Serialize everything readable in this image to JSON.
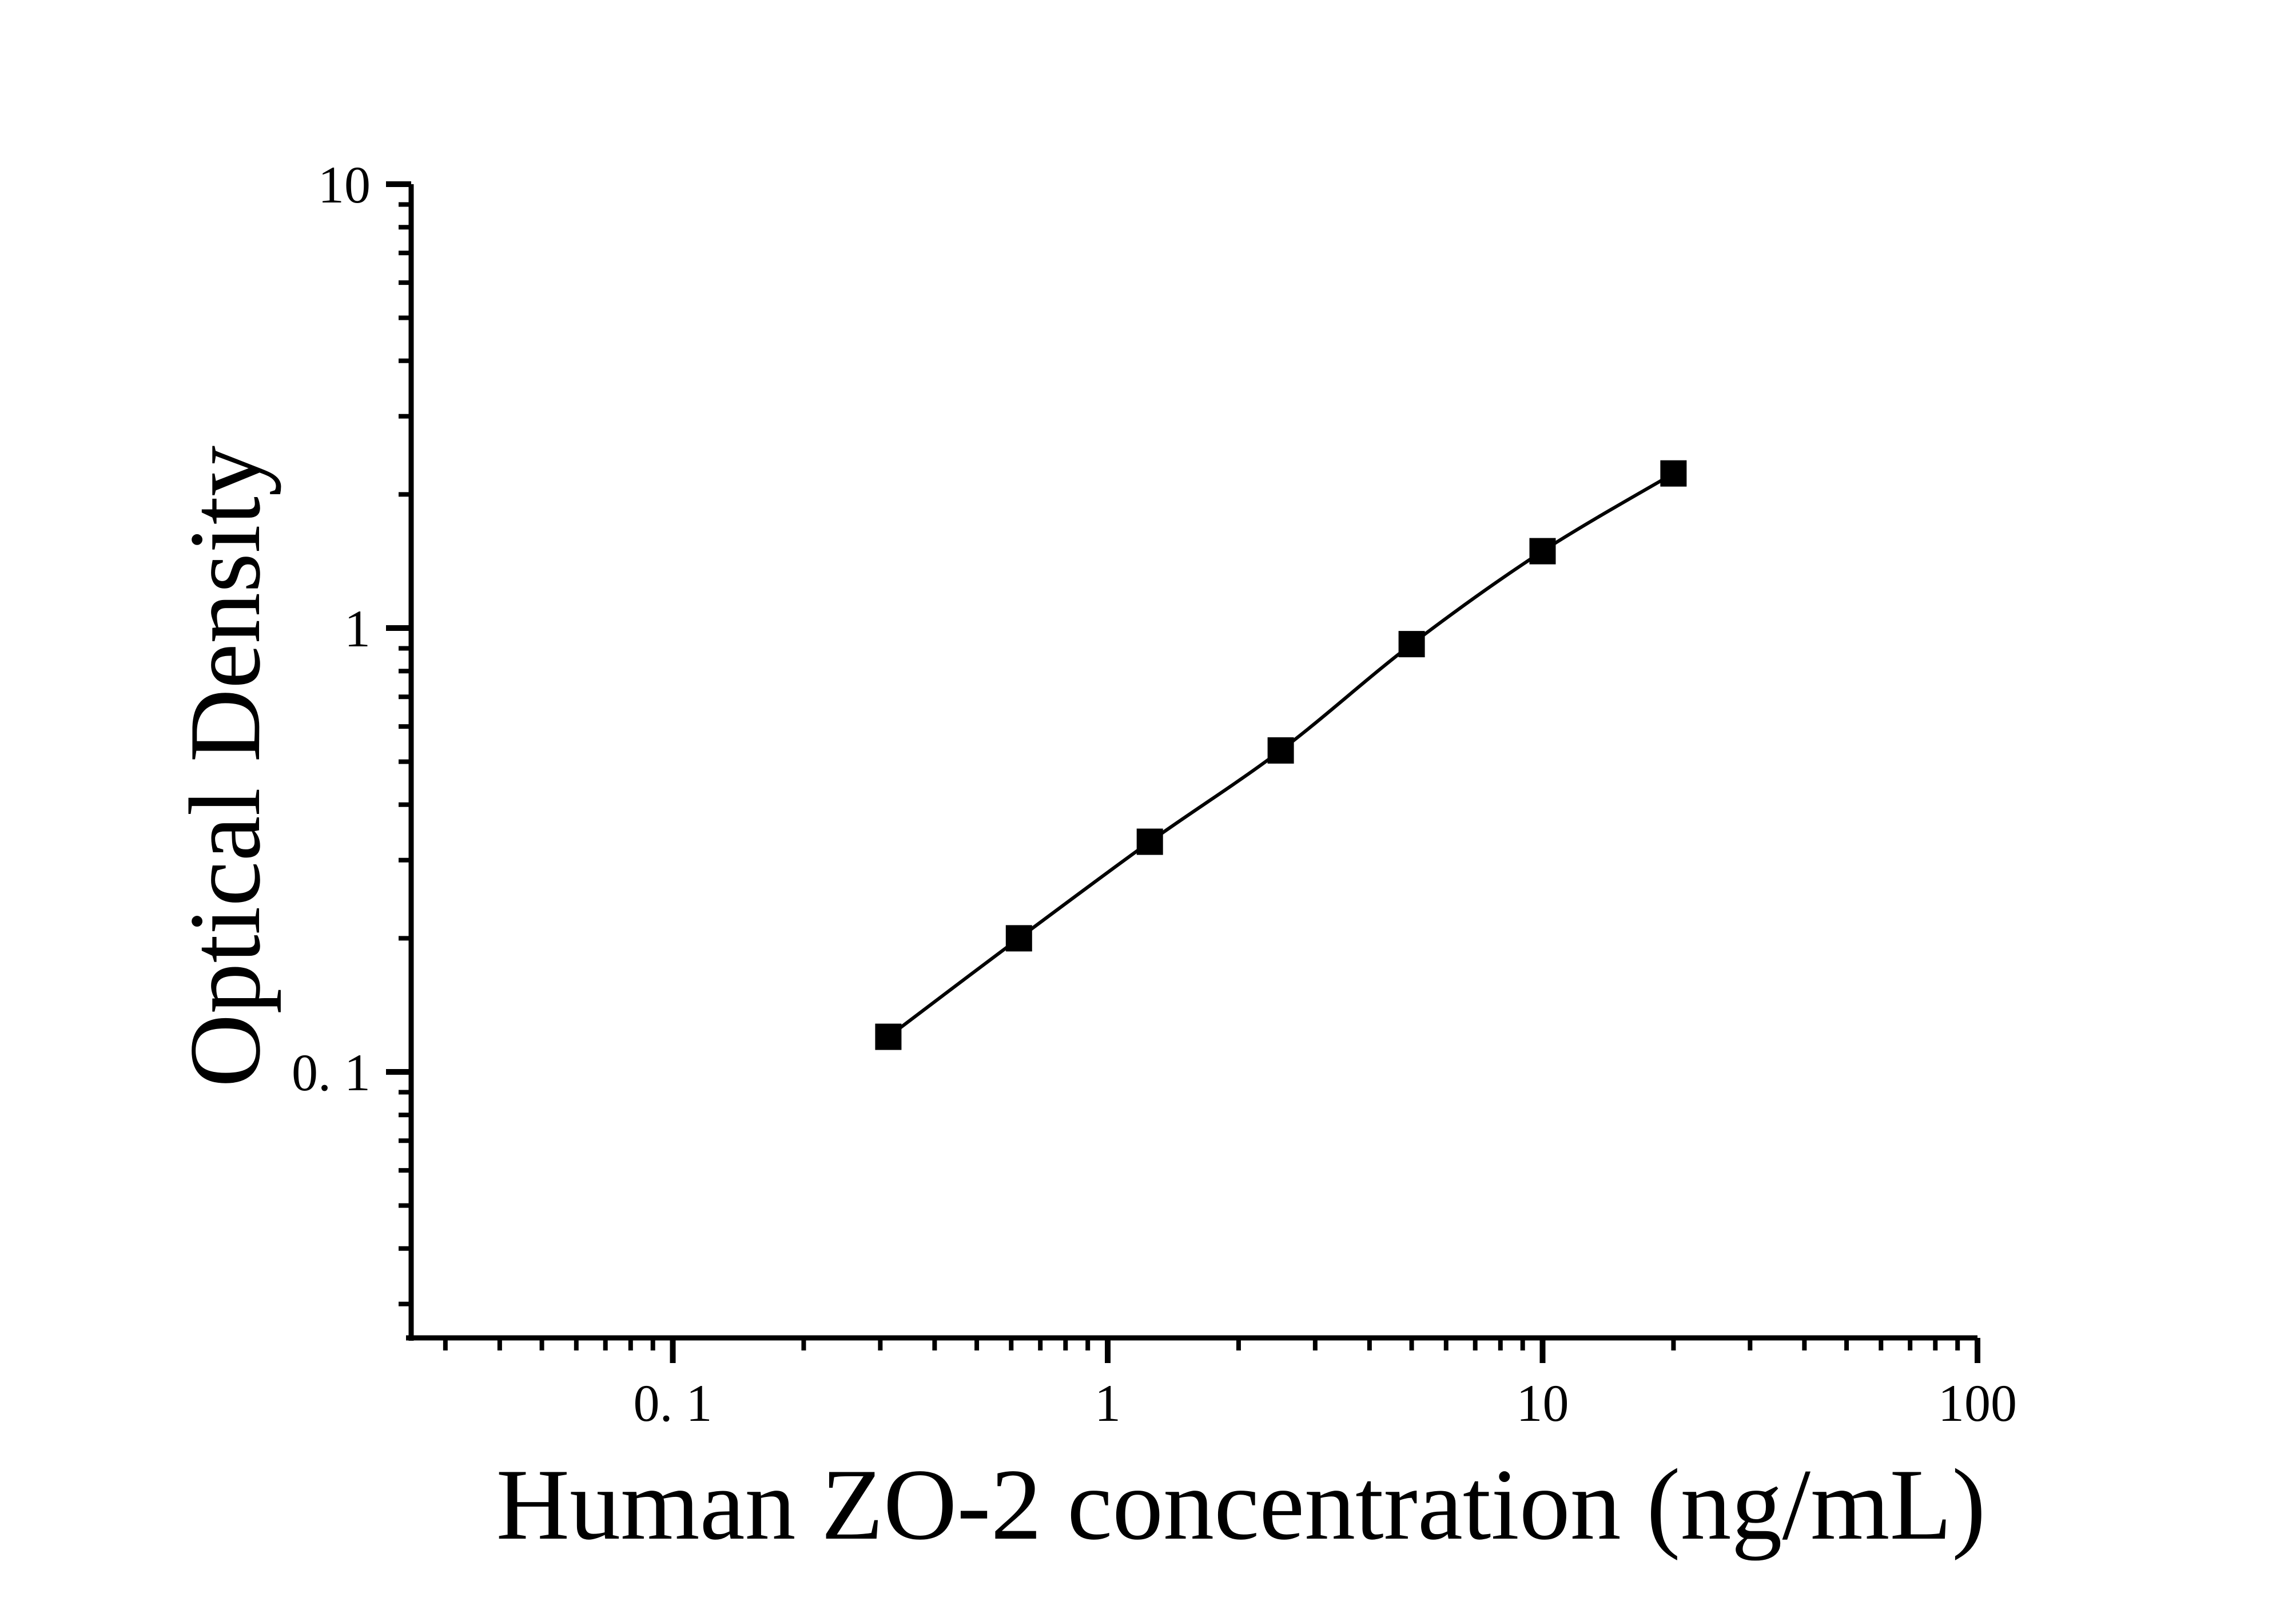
{
  "chart_data": {
    "type": "line",
    "title": "",
    "xlabel": "Human ZO-2 concentration (ng/mL)",
    "ylabel": "Optical Density",
    "x_scale": "log",
    "y_scale": "log",
    "grid": false,
    "legend": false,
    "background_color": "#ffffff",
    "foreground_color": "#000000",
    "x_axis": {
      "range_min": 0.024,
      "range_max": 100,
      "ticks": [
        {
          "value": 0.1,
          "label": "0. 1"
        },
        {
          "value": 1,
          "label": "1"
        },
        {
          "value": 10,
          "label": "10"
        },
        {
          "value": 100,
          "label": "100"
        }
      ]
    },
    "y_axis": {
      "range_min": 0.025,
      "range_max": 10,
      "ticks": [
        {
          "value": 0.1,
          "label": "0. 1"
        },
        {
          "value": 1,
          "label": "1"
        },
        {
          "value": 10,
          "label": "10"
        }
      ]
    },
    "series": [
      {
        "marker": "square",
        "color": "#000000",
        "points": [
          {
            "x": 0.313,
            "y": 0.12
          },
          {
            "x": 0.625,
            "y": 0.2
          },
          {
            "x": 1.25,
            "y": 0.33
          },
          {
            "x": 2.5,
            "y": 0.53
          },
          {
            "x": 5,
            "y": 0.92
          },
          {
            "x": 10,
            "y": 1.49
          },
          {
            "x": 20,
            "y": 2.23
          }
        ]
      }
    ]
  }
}
